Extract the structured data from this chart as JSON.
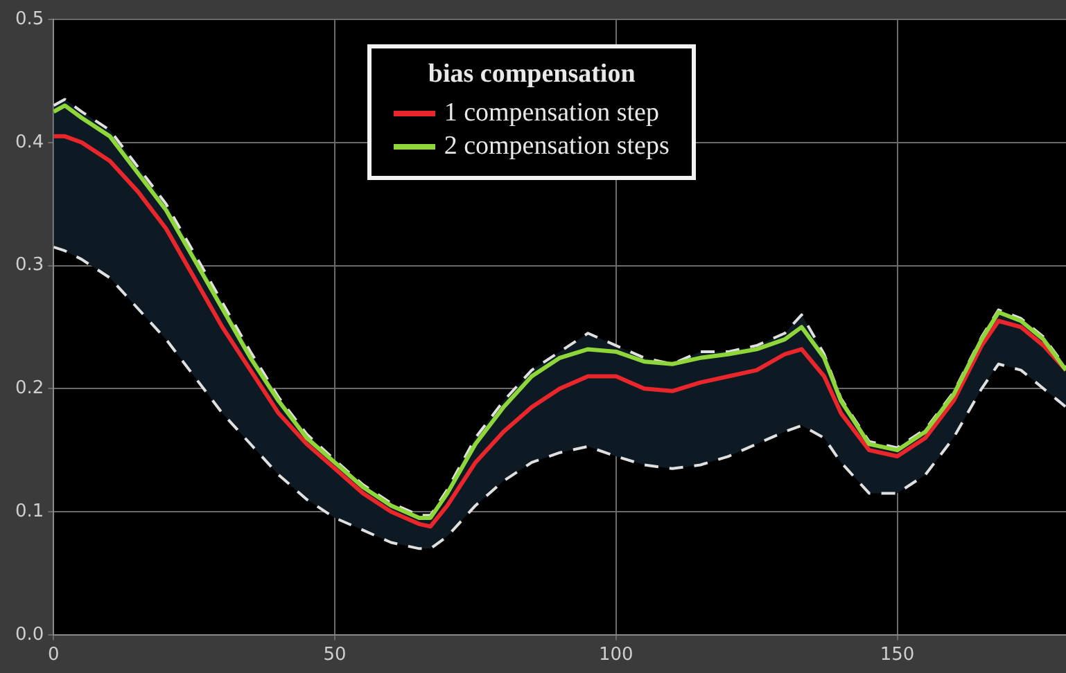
{
  "chart_data": {
    "type": "line",
    "legend_title": "bias compensation",
    "x": [
      0,
      2,
      5,
      10,
      15,
      20,
      25,
      30,
      35,
      40,
      45,
      50,
      55,
      60,
      65,
      67,
      70,
      75,
      80,
      85,
      90,
      95,
      100,
      105,
      110,
      115,
      120,
      125,
      130,
      133,
      137,
      140,
      145,
      150,
      155,
      160,
      165,
      168,
      172,
      176,
      180
    ],
    "series": [
      {
        "name": "1 compensation step",
        "color": "#e8262b",
        "values": [
          0.405,
          0.405,
          0.4,
          0.385,
          0.36,
          0.33,
          0.29,
          0.25,
          0.215,
          0.18,
          0.155,
          0.135,
          0.115,
          0.1,
          0.09,
          0.088,
          0.105,
          0.14,
          0.165,
          0.185,
          0.2,
          0.21,
          0.21,
          0.2,
          0.198,
          0.205,
          0.21,
          0.215,
          0.228,
          0.232,
          0.21,
          0.18,
          0.15,
          0.145,
          0.16,
          0.19,
          0.235,
          0.255,
          0.25,
          0.235,
          0.215
        ],
        "lower": [
          0.315,
          0.312,
          0.305,
          0.29,
          0.265,
          0.24,
          0.21,
          0.18,
          0.155,
          0.13,
          0.11,
          0.095,
          0.085,
          0.075,
          0.07,
          0.07,
          0.08,
          0.105,
          0.125,
          0.14,
          0.148,
          0.153,
          0.145,
          0.138,
          0.135,
          0.138,
          0.145,
          0.155,
          0.165,
          0.17,
          0.16,
          0.14,
          0.115,
          0.115,
          0.13,
          0.16,
          0.2,
          0.22,
          0.215,
          0.2,
          0.185
        ],
        "upper": [
          0.43,
          0.435,
          0.425,
          0.41,
          0.38,
          0.35,
          0.31,
          0.27,
          0.23,
          0.193,
          0.163,
          0.142,
          0.122,
          0.107,
          0.097,
          0.097,
          0.118,
          0.16,
          0.19,
          0.215,
          0.23,
          0.245,
          0.235,
          0.225,
          0.22,
          0.23,
          0.23,
          0.235,
          0.245,
          0.26,
          0.228,
          0.192,
          0.157,
          0.152,
          0.167,
          0.197,
          0.242,
          0.264,
          0.257,
          0.242,
          0.217
        ]
      },
      {
        "color": "#e0e0e0",
        "line_style": "dashed",
        "values": [
          0.315,
          0.312,
          0.305,
          0.29,
          0.265,
          0.24,
          0.21,
          0.18,
          0.155,
          0.13,
          0.11,
          0.095,
          0.085,
          0.075,
          0.07,
          0.07,
          0.08,
          0.105,
          0.125,
          0.14,
          0.148,
          0.153,
          0.145,
          0.138,
          0.135,
          0.138,
          0.145,
          0.155,
          0.165,
          0.17,
          0.16,
          0.14,
          0.115,
          0.115,
          0.13,
          0.16,
          0.2,
          0.22,
          0.215,
          0.2,
          0.185
        ]
      },
      {
        "color": "#e0e0e0",
        "line_style": "dashed",
        "values": [
          0.43,
          0.435,
          0.425,
          0.41,
          0.38,
          0.35,
          0.31,
          0.27,
          0.23,
          0.193,
          0.163,
          0.142,
          0.122,
          0.107,
          0.097,
          0.097,
          0.118,
          0.16,
          0.19,
          0.215,
          0.23,
          0.245,
          0.235,
          0.225,
          0.22,
          0.23,
          0.23,
          0.235,
          0.245,
          0.26,
          0.228,
          0.192,
          0.157,
          0.152,
          0.167,
          0.197,
          0.242,
          0.264,
          0.257,
          0.242,
          0.217
        ]
      },
      {
        "name": "2 compensation steps",
        "color": "#8fd63a",
        "values": [
          0.425,
          0.43,
          0.42,
          0.405,
          0.375,
          0.345,
          0.305,
          0.265,
          0.225,
          0.19,
          0.16,
          0.14,
          0.12,
          0.105,
          0.095,
          0.095,
          0.115,
          0.155,
          0.185,
          0.21,
          0.225,
          0.232,
          0.23,
          0.222,
          0.22,
          0.225,
          0.228,
          0.232,
          0.24,
          0.25,
          0.225,
          0.19,
          0.155,
          0.15,
          0.165,
          0.195,
          0.24,
          0.262,
          0.255,
          0.24,
          0.215
        ]
      }
    ],
    "xlim": [
      0,
      180
    ],
    "xticks": [
      0,
      50,
      100,
      150
    ],
    "ylim": [
      0,
      0.5
    ],
    "yticks": [
      {
        "value": 0,
        "label": "0.0"
      },
      0.1,
      0.2,
      0.3,
      0.4,
      0.5
    ],
    "grid": true,
    "legend": "top",
    "marker": "none",
    "line_style": "solid"
  }
}
